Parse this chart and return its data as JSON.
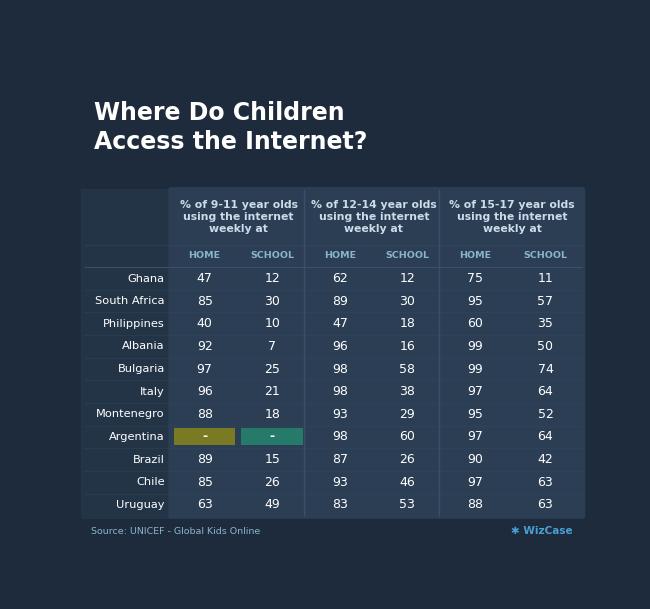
{
  "title_line1": "Where Do Children",
  "title_line2": "Access the Internet?",
  "source": "Source: UNICEF - Global Kids Online",
  "watermark": "✱ WizCase",
  "group_headers": [
    "% of 9-11 year olds\nusing the internet\nweekly at",
    "% of 12-14 year olds\nusing the internet\nweekly at",
    "% of 15-17 year olds\nusing the internet\nweekly at"
  ],
  "col_headers": [
    "HOME",
    "SCHOOL",
    "HOME",
    "SCHOOL",
    "HOME",
    "SCHOOL"
  ],
  "countries": [
    "Ghana",
    "South Africa",
    "Philippines",
    "Albania",
    "Bulgaria",
    "Italy",
    "Montenegro",
    "Argentina",
    "Brazil",
    "Chile",
    "Uruguay"
  ],
  "data": [
    [
      47,
      12,
      62,
      12,
      75,
      11
    ],
    [
      85,
      30,
      89,
      30,
      95,
      57
    ],
    [
      40,
      10,
      47,
      18,
      60,
      35
    ],
    [
      92,
      7,
      96,
      16,
      99,
      50
    ],
    [
      97,
      25,
      98,
      58,
      99,
      74
    ],
    [
      96,
      21,
      98,
      38,
      97,
      64
    ],
    [
      88,
      18,
      93,
      29,
      95,
      52
    ],
    [
      "-",
      "-",
      98,
      60,
      97,
      64
    ],
    [
      89,
      15,
      87,
      26,
      90,
      42
    ],
    [
      85,
      26,
      93,
      46,
      97,
      63
    ],
    [
      63,
      49,
      83,
      53,
      88,
      63
    ]
  ],
  "argentina_home_color": "#7a7a25",
  "argentina_school_color": "#257a6a",
  "bg_color": "#1e2b3c",
  "table_bg": "#243447",
  "table_col_bg": "#2b3e54",
  "text_color": "#ffffff",
  "header_text_color": "#8ab4cc",
  "title_color": "#ffffff",
  "group_header_color": "#ccdce8",
  "source_color": "#8ab4cc",
  "divider_color": "#3a5068",
  "argentina_idx": 7
}
